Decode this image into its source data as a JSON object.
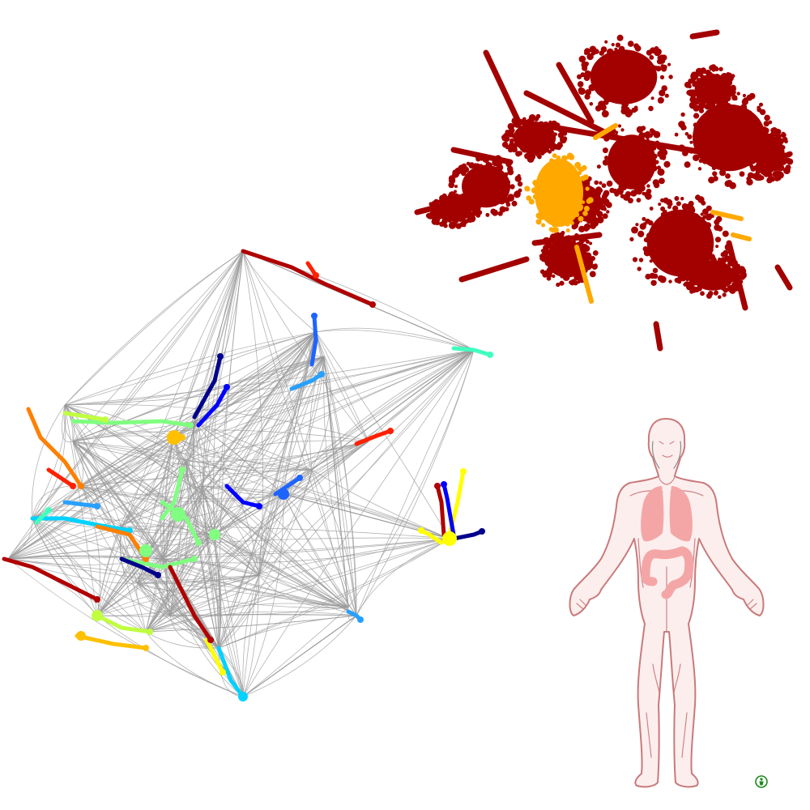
{
  "colors": {
    "background": "#ffffff",
    "cluster_main": "#a30000",
    "cluster_highlight": "#ffa800",
    "network_edge": "#9a9a9a",
    "body_outline": "#c97a7a",
    "body_fill": "#fdeeee",
    "organ_fill": "#f4a6a6",
    "info_icon": "#1a8a1a"
  },
  "panels": {
    "scatter": {
      "icon": "dark-red-scatter-embedding"
    },
    "network": {
      "icon": "colored-trajectory-network",
      "palette": [
        "#00008b",
        "#0000ff",
        "#1e64ff",
        "#28a0ff",
        "#00d2ff",
        "#40ffc0",
        "#80ff80",
        "#c0ff40",
        "#ffff00",
        "#ffc000",
        "#ff8000",
        "#ff2000",
        "#b00000"
      ]
    },
    "anatomy": {
      "icon": "human-body-anatomy",
      "highlighted_organs": [
        "lungs",
        "colon"
      ]
    },
    "info_button": {
      "icon": "info-person-icon"
    }
  }
}
